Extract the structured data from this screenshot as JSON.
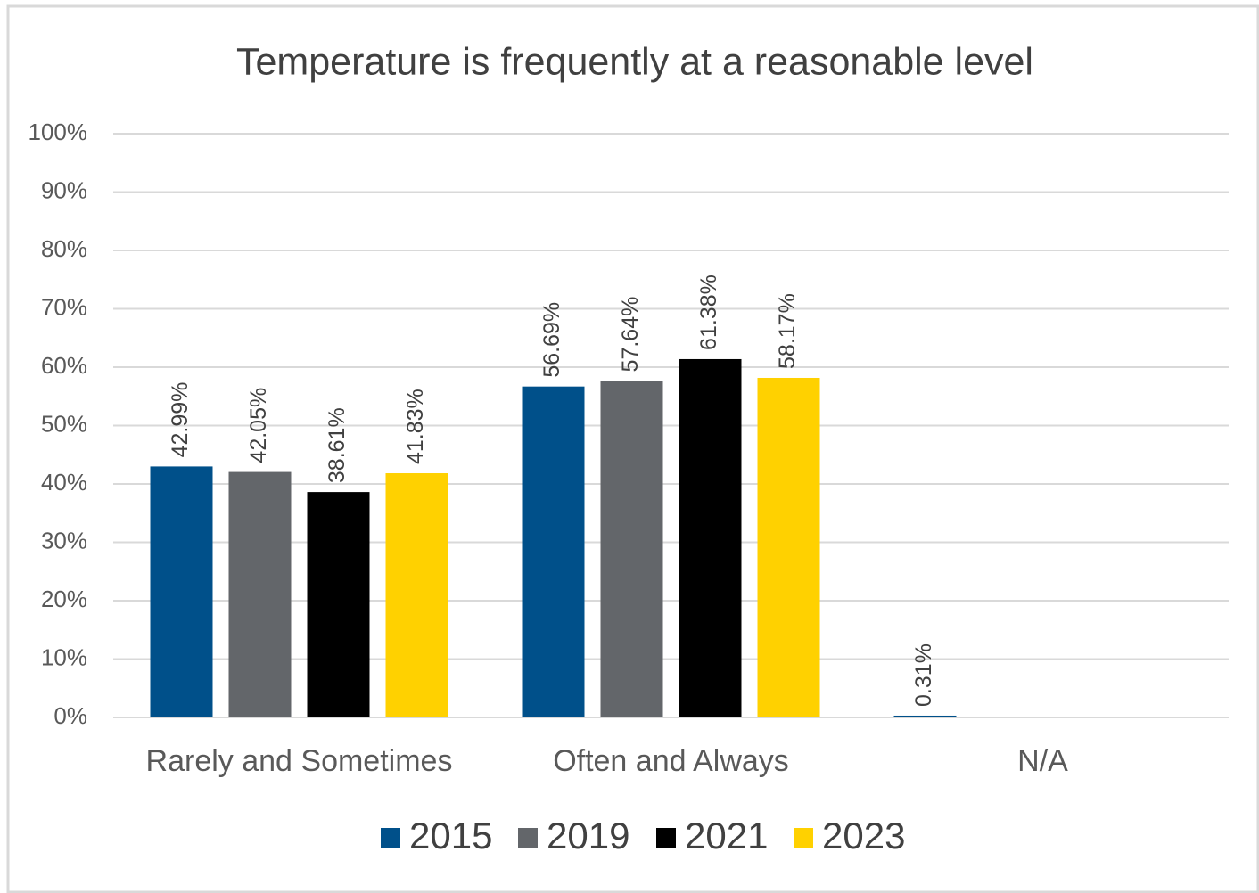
{
  "chart_data": {
    "type": "bar",
    "title": "Temperature is frequently at a reasonable level",
    "categories": [
      "Rarely and Sometimes",
      "Often and Always",
      "N/A"
    ],
    "series": [
      {
        "name": "2015",
        "color": "#00508a",
        "values": [
          42.99,
          56.69,
          0.31
        ],
        "value_labels": [
          "42.99%",
          "56.69%",
          "0.31%"
        ]
      },
      {
        "name": "2019",
        "color": "#63666a",
        "values": [
          42.05,
          57.64,
          null
        ],
        "value_labels": [
          "42.05%",
          "57.64%",
          null
        ]
      },
      {
        "name": "2021",
        "color": "#000000",
        "values": [
          38.61,
          61.38,
          null
        ],
        "value_labels": [
          "38.61%",
          "61.38%",
          null
        ]
      },
      {
        "name": "2023",
        "color": "#ffd100",
        "values": [
          41.83,
          58.17,
          null
        ],
        "value_labels": [
          "41.83%",
          "58.17%",
          null
        ]
      }
    ],
    "ylim": [
      0,
      100
    ],
    "yticks": [
      {
        "value": 0,
        "label": "0%"
      },
      {
        "value": 10,
        "label": "10%"
      },
      {
        "value": 20,
        "label": "20%"
      },
      {
        "value": 30,
        "label": "30%"
      },
      {
        "value": 40,
        "label": "40%"
      },
      {
        "value": 50,
        "label": "50%"
      },
      {
        "value": 60,
        "label": "60%"
      },
      {
        "value": 70,
        "label": "70%"
      },
      {
        "value": 80,
        "label": "80%"
      },
      {
        "value": 90,
        "label": "90%"
      },
      {
        "value": 100,
        "label": "100%"
      }
    ],
    "grid": true,
    "legend": "bottom"
  }
}
